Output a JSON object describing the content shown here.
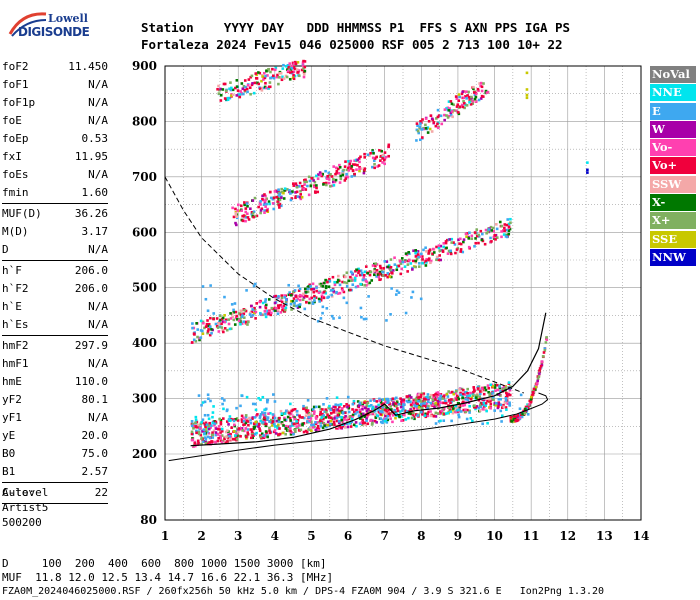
{
  "logo": {
    "line1": "Lowell",
    "line2": "DIGISONDE"
  },
  "header": {
    "labels": {
      "station": "Station",
      "year": "YYYY",
      "day": "DAY",
      "ddd": "DDD",
      "hhmmss": "HHMMSS",
      "p1": "P1",
      "ffs": "FFS",
      "s": "S",
      "axn": "AXN",
      "pps": "PPS",
      "iga": "IGA",
      "ps": "PS"
    },
    "values": {
      "station": "Fortaleza",
      "year": "2024",
      "day": "Fev15",
      "ddd": "046",
      "hhmmss": "025000",
      "p1": "RSF",
      "ffs": "005",
      "s": "2",
      "axn": "713",
      "pps": "100",
      "iga": "10+",
      "ps": "22"
    }
  },
  "params": [
    {
      "k": "foF2",
      "v": "11.450"
    },
    {
      "k": "foF1",
      "v": "N/A"
    },
    {
      "k": "foF1p",
      "v": "N/A"
    },
    {
      "k": "foE",
      "v": "N/A"
    },
    {
      "k": "foEp",
      "v": "0.53"
    },
    {
      "k": "fxI",
      "v": "11.95"
    },
    {
      "k": "foEs",
      "v": "N/A"
    },
    {
      "k": "fmin",
      "v": "1.60"
    },
    {
      "sep": true
    },
    {
      "k": "MUF(D)",
      "v": "36.26"
    },
    {
      "k": "M(D)",
      "v": "3.17"
    },
    {
      "k": "D",
      "v": "N/A"
    },
    {
      "sep": true
    },
    {
      "k": "h`F",
      "v": "206.0"
    },
    {
      "k": "h`F2",
      "v": "206.0"
    },
    {
      "k": "h`E",
      "v": "N/A"
    },
    {
      "k": "h`Es",
      "v": "N/A"
    },
    {
      "sep": true
    },
    {
      "k": "hmF2",
      "v": "297.9"
    },
    {
      "k": "hmF1",
      "v": "N/A"
    },
    {
      "k": "hmE",
      "v": "110.0"
    },
    {
      "k": "yF2",
      "v": "80.1"
    },
    {
      "k": "yF1",
      "v": "N/A"
    },
    {
      "k": "yE",
      "v": "20.0"
    },
    {
      "k": "B0",
      "v": "75.0"
    },
    {
      "k": "B1",
      "v": "2.57"
    },
    {
      "sep": true
    },
    {
      "k": "C-level",
      "v": "22"
    },
    {
      "sep": true
    }
  ],
  "auto": [
    "Auto:",
    "Artist5",
    "500200"
  ],
  "footer": {
    "d_row": "D     100  200  400  600  800 1000 1500 3000 [km]",
    "muf_row": "MUF  11.8 12.0 12.5 13.4 14.7 16.6 22.1 36.3 [MHz]",
    "file_row": "FZA0M_2024046025000.RSF / 260fx256h 50 kHz 5.0 km / DPS-4 FZA0M 904 / 3.9 S 321.6 E   Ion2Png 1.3.20"
  },
  "legend": [
    {
      "label": "NoVal",
      "color": "#808080"
    },
    {
      "label": "NNE",
      "color": "#00e5ee"
    },
    {
      "label": "E",
      "color": "#3ea8f0"
    },
    {
      "label": "W",
      "color": "#a800a8"
    },
    {
      "label": "Vo-",
      "color": "#ff40b0"
    },
    {
      "label": "Vo+",
      "color": "#f0003c"
    },
    {
      "label": "SSW",
      "color": "#f4a8a8"
    },
    {
      "label": "X-",
      "color": "#007800"
    },
    {
      "label": "X+",
      "color": "#80b060"
    },
    {
      "label": "SSE",
      "color": "#c8c800"
    },
    {
      "label": "NNW",
      "color": "#0000c8"
    }
  ],
  "chart_data": {
    "type": "scatter",
    "xlim": [
      1,
      14
    ],
    "ylim": [
      80,
      900
    ],
    "x_ticks": [
      1,
      2,
      3,
      4,
      5,
      6,
      7,
      8,
      9,
      10,
      11,
      12,
      13,
      14
    ],
    "y_ticks": [
      80,
      200,
      300,
      400,
      500,
      600,
      700,
      800,
      900
    ],
    "grid": true,
    "traces": [
      {
        "name": "F2 O-trace band",
        "x_start": 1.7,
        "x_end": 11.4,
        "y_start": 215,
        "y_end": 300
      },
      {
        "name": "2nd hop",
        "x_start": 1.7,
        "x_end": 10.4,
        "y_start": 420,
        "y_end": 610
      },
      {
        "name": "3rd hop",
        "x_start": 2.8,
        "x_end": 7.1,
        "y_start": 630,
        "y_end": 745
      },
      {
        "name": "3rd hop cont.",
        "x_start": 7.8,
        "x_end": 9.8,
        "y_start": 780,
        "y_end": 870
      },
      {
        "name": "4th hop",
        "x_start": 2.4,
        "x_end": 4.8,
        "y_start": 850,
        "y_end": 900
      }
    ],
    "profile_curve": {
      "x": [
        1.1,
        2,
        3,
        4,
        5,
        6,
        7,
        8,
        9,
        10,
        10.6,
        11.0,
        11.3,
        11.45,
        11.4,
        11.2
      ],
      "y": [
        188,
        197,
        207,
        216,
        223,
        230,
        237,
        244,
        253,
        263,
        272,
        282,
        290,
        298,
        305,
        310
      ]
    },
    "virtual_height_curve": {
      "x": [
        1.7,
        2.5,
        3.5,
        4.5,
        5.5,
        6.2,
        6.7,
        7.0,
        7.3,
        7.8,
        8.5,
        9.2,
        10.0,
        10.5,
        10.9,
        11.2,
        11.4
      ],
      "y": [
        215,
        218,
        222,
        230,
        245,
        262,
        278,
        290,
        270,
        278,
        283,
        292,
        305,
        322,
        350,
        390,
        455
      ]
    },
    "muf_curve": {
      "x": [
        1.0,
        1.5,
        2.0,
        3.0,
        4.0,
        5.0,
        6.0,
        7.0,
        8.0,
        9.0,
        10.0,
        10.8
      ],
      "y": [
        700,
        640,
        590,
        525,
        480,
        445,
        420,
        395,
        375,
        355,
        330,
        310
      ]
    }
  }
}
